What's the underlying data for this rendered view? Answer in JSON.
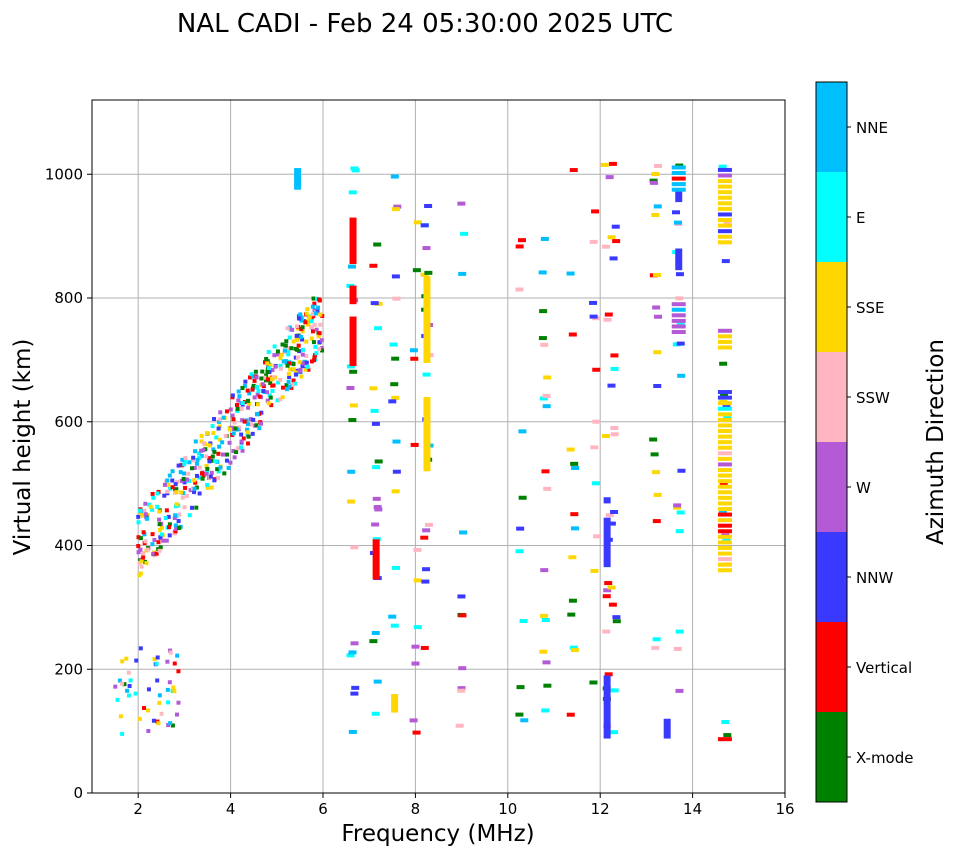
{
  "chart_data": {
    "type": "scatter",
    "title": "NAL CADI - Feb 24 05:30:00 2025 UTC",
    "xlabel": "Frequency (MHz)",
    "ylabel": "Virtual height (km)",
    "xlim": [
      1,
      16
    ],
    "ylim": [
      0,
      1120
    ],
    "xticks": [
      2,
      4,
      6,
      8,
      10,
      12,
      14,
      16
    ],
    "yticks": [
      0,
      200,
      400,
      600,
      800,
      1000
    ],
    "grid": true,
    "colorbar": {
      "label": "Azimuth Direction",
      "position": "right",
      "categories": [
        {
          "name": "X-mode",
          "color": "#008000"
        },
        {
          "name": "Vertical",
          "color": "#ff0000"
        },
        {
          "name": "NNW",
          "color": "#3a3aff"
        },
        {
          "name": "W",
          "color": "#b45ad6"
        },
        {
          "name": "SSW",
          "color": "#ffb6c1"
        },
        {
          "name": "SSE",
          "color": "#ffd700"
        },
        {
          "name": "E",
          "color": "#00ffff"
        },
        {
          "name": "NNE",
          "color": "#00bfff"
        }
      ]
    },
    "echo_columns": [
      {
        "f": 8.25,
        "h0": 520,
        "h1": 640,
        "cat": "SSE"
      },
      {
        "f": 8.25,
        "h0": 695,
        "h1": 835,
        "cat": "SSE"
      },
      {
        "f": 6.65,
        "h0": 690,
        "h1": 770,
        "cat": "Vertical"
      },
      {
        "f": 6.65,
        "h0": 790,
        "h1": 820,
        "cat": "Vertical"
      },
      {
        "f": 6.65,
        "h0": 855,
        "h1": 930,
        "cat": "Vertical"
      },
      {
        "f": 12.15,
        "h0": 88,
        "h1": 190,
        "cat": "NNW"
      },
      {
        "f": 12.15,
        "h0": 365,
        "h1": 445,
        "cat": "NNW"
      },
      {
        "f": 12.15,
        "h0": 468,
        "h1": 478,
        "cat": "NNW"
      },
      {
        "f": 13.7,
        "h0": 845,
        "h1": 880,
        "cat": "NNW"
      },
      {
        "f": 13.7,
        "h0": 955,
        "h1": 975,
        "cat": "NNW"
      },
      {
        "f": 13.45,
        "h0": 88,
        "h1": 120,
        "cat": "NNW"
      },
      {
        "f": 7.55,
        "h0": 130,
        "h1": 160,
        "cat": "SSE"
      },
      {
        "f": 5.45,
        "h0": 975,
        "h1": 1010,
        "cat": "NNE"
      },
      {
        "f": 7.15,
        "h0": 345,
        "h1": 410,
        "cat": "Vertical"
      }
    ],
    "echo_rows": [
      {
        "f": 14.7,
        "h0": 360,
        "h1": 650,
        "cat": "SSE"
      },
      {
        "f": 14.7,
        "h0": 720,
        "h1": 750,
        "cat": "SSE"
      },
      {
        "f": 14.7,
        "h0": 890,
        "h1": 1015,
        "cat": "SSE"
      },
      {
        "f": 14.7,
        "h0": 87,
        "h1": 95,
        "cat": "Vertical"
      },
      {
        "f": 13.7,
        "h0": 745,
        "h1": 790,
        "cat": "W"
      },
      {
        "f": 13.7,
        "h0": 975,
        "h1": 1012,
        "cat": "NNE"
      }
    ]
  }
}
